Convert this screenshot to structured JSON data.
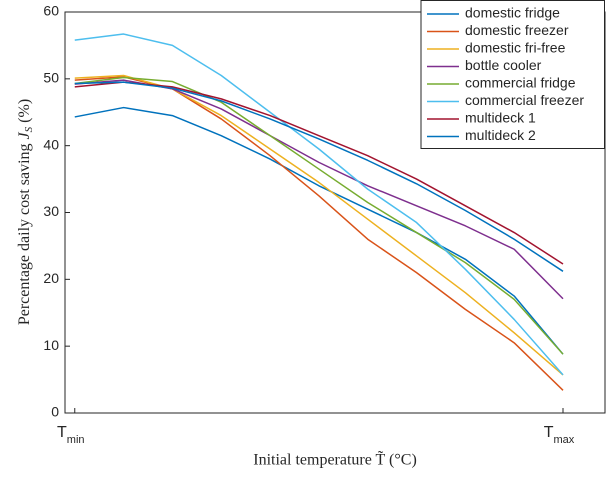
{
  "chart_data": {
    "type": "line",
    "x_label": "Initial temperature T̃ (°C)",
    "y_label": {
      "text": "Percentage daily cost saving ",
      "symbol": "J",
      "sub": "S",
      "unit": " (%)"
    },
    "x": [
      0,
      0.1,
      0.2,
      0.3,
      0.4,
      0.5,
      0.6,
      0.7,
      0.8,
      0.9,
      1
    ],
    "xlim": [
      -0.02,
      1.086
    ],
    "xticks": [
      {
        "value": 0,
        "label": "T",
        "sub": "min"
      },
      {
        "value": 1,
        "label": "T",
        "sub": "max"
      }
    ],
    "ylim": [
      0,
      60
    ],
    "yticks": [
      0,
      10,
      20,
      30,
      40,
      50,
      60
    ],
    "legend": "top-right",
    "series": [
      {
        "name": "domestic fridge",
        "color": "#0072bd",
        "values": [
          44.3,
          45.7,
          44.5,
          41.5,
          38,
          34,
          30.5,
          27,
          23,
          17.5,
          8.8
        ]
      },
      {
        "name": "domestic freezer",
        "color": "#d95319",
        "values": [
          49.8,
          50.3,
          48.5,
          44,
          38.5,
          32.5,
          26,
          21,
          15.5,
          10.5,
          3.4
        ]
      },
      {
        "name": "domestic fri-free",
        "color": "#edb120",
        "values": [
          50.1,
          50.5,
          48.5,
          44.5,
          39.5,
          34.5,
          29,
          23.5,
          18,
          12,
          5.7
        ]
      },
      {
        "name": "bottle cooler",
        "color": "#7e2f8e",
        "values": [
          49.2,
          49.8,
          48.5,
          45.5,
          41.5,
          37.5,
          34,
          31,
          28,
          24.5,
          17.1
        ]
      },
      {
        "name": "commercial fridge",
        "color": "#77ac30",
        "values": [
          49.3,
          50.2,
          49.6,
          46.5,
          41.5,
          36.5,
          31.5,
          27,
          22.5,
          17,
          8.8
        ]
      },
      {
        "name": "commercial freezer",
        "color": "#4dbeee",
        "values": [
          55.8,
          56.7,
          55,
          50.5,
          45,
          39.5,
          33.5,
          28.5,
          21.5,
          14,
          5.7
        ]
      },
      {
        "name": "multideck 1",
        "color": "#a2142f",
        "values": [
          48.8,
          49.5,
          48.8,
          47,
          44.5,
          41.5,
          38.5,
          35,
          31,
          27,
          22.3
        ]
      },
      {
        "name": "multideck 2",
        "color": "#0072bd",
        "values": [
          49.3,
          49.5,
          48.6,
          46.7,
          44,
          41,
          37.8,
          34.3,
          30.3,
          26,
          21.2
        ]
      }
    ]
  }
}
